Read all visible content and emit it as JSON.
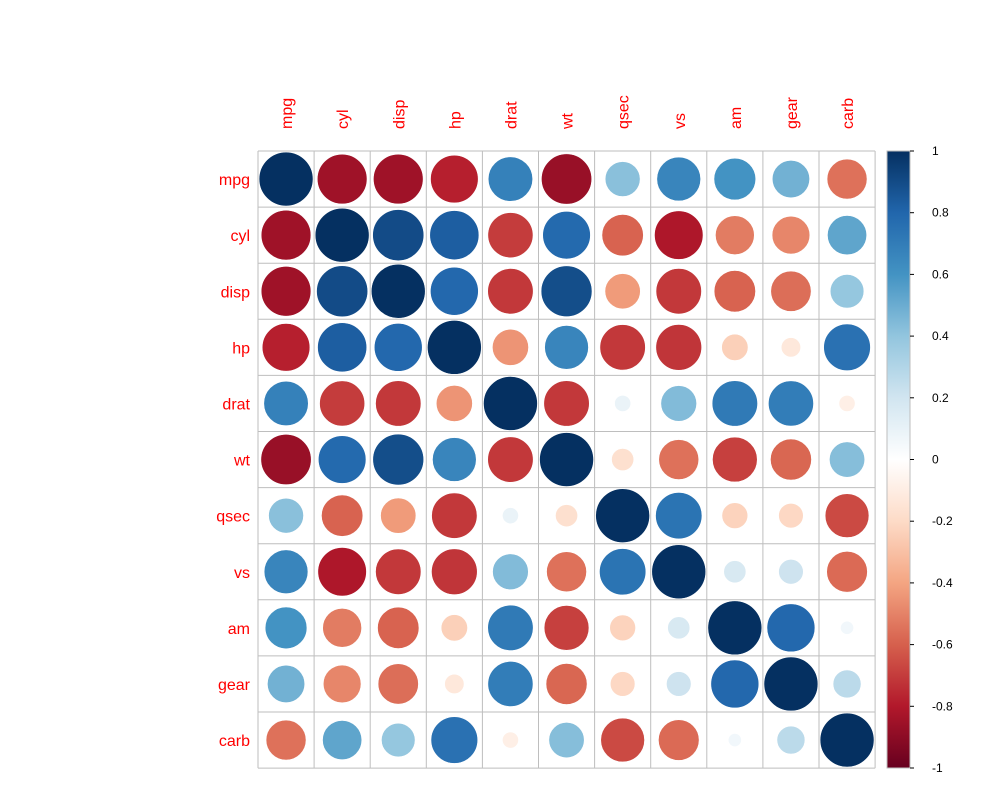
{
  "chart_data": {
    "type": "heatmap",
    "method": "circle",
    "variables": [
      "mpg",
      "cyl",
      "disp",
      "hp",
      "drat",
      "wt",
      "qsec",
      "vs",
      "am",
      "gear",
      "carb"
    ],
    "matrix": [
      [
        1.0,
        -0.85,
        -0.85,
        -0.78,
        0.68,
        -0.87,
        0.42,
        0.66,
        0.6,
        0.48,
        -0.55
      ],
      [
        -0.85,
        1.0,
        0.9,
        0.83,
        -0.7,
        0.78,
        -0.59,
        -0.81,
        -0.52,
        -0.49,
        0.53
      ],
      [
        -0.85,
        0.9,
        1.0,
        0.79,
        -0.71,
        0.89,
        -0.43,
        -0.71,
        -0.59,
        -0.56,
        0.39
      ],
      [
        -0.78,
        0.83,
        0.79,
        1.0,
        -0.45,
        0.66,
        -0.71,
        -0.72,
        -0.24,
        -0.13,
        0.75
      ],
      [
        0.68,
        -0.7,
        -0.71,
        -0.45,
        1.0,
        -0.71,
        0.09,
        0.44,
        0.71,
        0.7,
        -0.09
      ],
      [
        -0.87,
        0.78,
        0.89,
        0.66,
        -0.71,
        1.0,
        -0.17,
        -0.55,
        -0.69,
        -0.58,
        0.43
      ],
      [
        0.42,
        -0.59,
        -0.43,
        -0.71,
        0.09,
        -0.17,
        1.0,
        0.74,
        -0.23,
        -0.21,
        -0.66
      ],
      [
        0.66,
        -0.81,
        -0.71,
        -0.72,
        0.44,
        -0.55,
        0.74,
        1.0,
        0.17,
        0.21,
        -0.57
      ],
      [
        0.6,
        -0.52,
        -0.59,
        -0.24,
        0.71,
        -0.69,
        -0.23,
        0.17,
        1.0,
        0.79,
        0.06
      ],
      [
        0.48,
        -0.49,
        -0.56,
        -0.13,
        0.7,
        -0.58,
        -0.21,
        0.21,
        0.79,
        1.0,
        0.27
      ],
      [
        -0.55,
        0.53,
        0.39,
        0.75,
        -0.09,
        0.43,
        -0.66,
        -0.57,
        0.06,
        0.27,
        1.0
      ]
    ],
    "label_color": "#FF0000",
    "grid": true,
    "grid_color": "#BEBEBE",
    "legend": {
      "position": "right",
      "range": [
        -1,
        1
      ],
      "ticks": [
        "1",
        "0.8",
        "0.6",
        "0.4",
        "0.2",
        "0",
        "-0.2",
        "-0.4",
        "-0.6",
        "-0.8",
        "-1"
      ],
      "palette": [
        "#67001F",
        "#B2182B",
        "#D6604D",
        "#F4A582",
        "#FDDBC7",
        "#FFFFFF",
        "#D1E5F0",
        "#92C5DE",
        "#4393C3",
        "#2166AC",
        "#053061"
      ]
    }
  }
}
